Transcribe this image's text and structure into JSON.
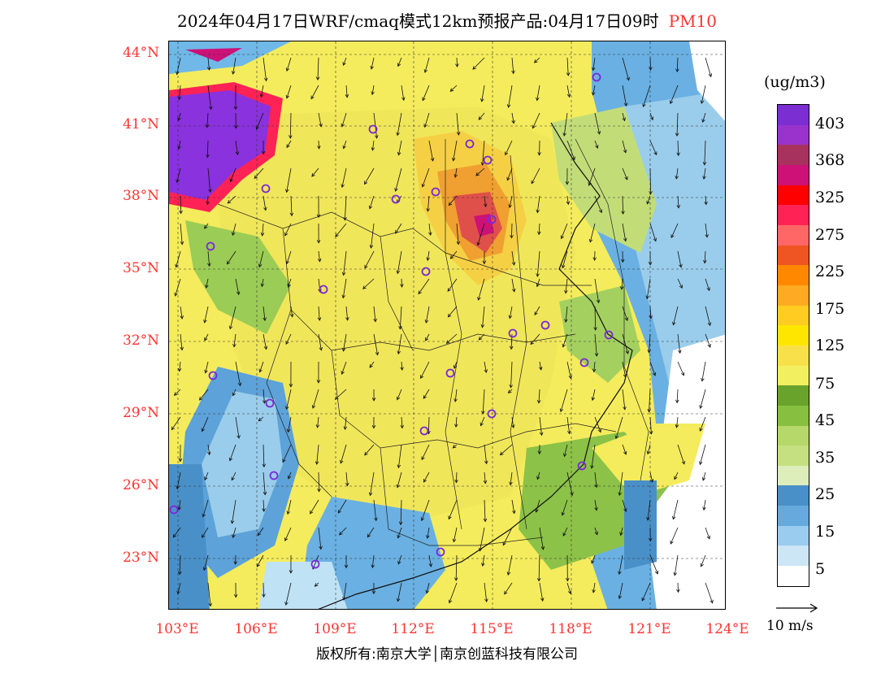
{
  "header": {
    "title": "2024年04月17日WRF/cmaq模式12km预报产品:04月17日09时",
    "pollutant": "PM10"
  },
  "axes": {
    "lat_labels": [
      "44°N",
      "41°N",
      "38°N",
      "35°N",
      "32°N",
      "29°N",
      "26°N",
      "23°N"
    ],
    "lon_labels": [
      "103°E",
      "106°E",
      "109°E",
      "112°E",
      "115°E",
      "118°E",
      "121°E",
      "124°E"
    ]
  },
  "legend": {
    "unit": "(ug/m3)",
    "labels": [
      "403",
      "368",
      "325",
      "275",
      "225",
      "175",
      "125",
      "75",
      "45",
      "35",
      "25",
      "15",
      "5"
    ],
    "colors": [
      "#7b2fd3",
      "#9933cc",
      "#a8325e",
      "#cc1177",
      "#ff0000",
      "#ff2255",
      "#ff6666",
      "#ee5522",
      "#ff8800",
      "#ffaa22",
      "#ffcc22",
      "#ffe600",
      "#f8e04a",
      "#f2f060",
      "#6aa32b",
      "#87c040",
      "#b6d86a",
      "#c5e080",
      "#ddeebb",
      "#4a90c8",
      "#66aadd",
      "#99ccee",
      "#cce6f6",
      "#ffffff"
    ],
    "wind_ref": "10 m/s"
  },
  "stations_count_note": "",
  "footer": {
    "copyright": "版权所有:南京大学│南京创蓝科技有限公司"
  }
}
